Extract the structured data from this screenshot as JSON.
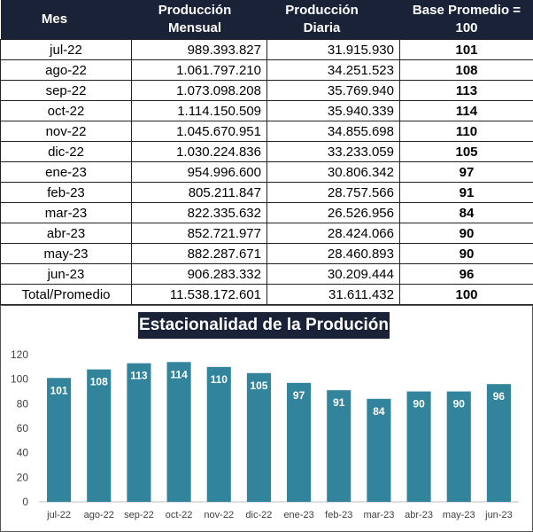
{
  "table": {
    "headers": {
      "mes": "Mes",
      "mensual": "Producción Mensual",
      "diaria": "Producción Diaria",
      "base": "Base Promedio = 100"
    },
    "rows": [
      {
        "mes": "jul-22",
        "mensual": "989.393.827",
        "diaria": "31.915.930",
        "base": "101"
      },
      {
        "mes": "ago-22",
        "mensual": "1.061.797.210",
        "diaria": "34.251.523",
        "base": "108"
      },
      {
        "mes": "sep-22",
        "mensual": "1.073.098.208",
        "diaria": "35.769.940",
        "base": "113"
      },
      {
        "mes": "oct-22",
        "mensual": "1.114.150.509",
        "diaria": "35.940.339",
        "base": "114"
      },
      {
        "mes": "nov-22",
        "mensual": "1.045.670.951",
        "diaria": "34.855.698",
        "base": "110"
      },
      {
        "mes": "dic-22",
        "mensual": "1.030.224.836",
        "diaria": "33.233.059",
        "base": "105"
      },
      {
        "mes": "ene-23",
        "mensual": "954.996.600",
        "diaria": "30.806.342",
        "base": "97"
      },
      {
        "mes": "feb-23",
        "mensual": "805.211.847",
        "diaria": "28.757.566",
        "base": "91"
      },
      {
        "mes": "mar-23",
        "mensual": "822.335.632",
        "diaria": "26.526.956",
        "base": "84"
      },
      {
        "mes": "abr-23",
        "mensual": "852.721.977",
        "diaria": "28.424.066",
        "base": "90"
      },
      {
        "mes": "may-23",
        "mensual": "882.287.671",
        "diaria": "28.460.893",
        "base": "90"
      },
      {
        "mes": "jun-23",
        "mensual": "906.283.332",
        "diaria": "30.209.444",
        "base": "96"
      }
    ],
    "total": {
      "mes": "Total/Promedio",
      "mensual": "11.538.172.601",
      "diaria": "31.611.432",
      "base": "100"
    }
  },
  "chart_data": {
    "type": "bar",
    "title": "Estacionalidad de la Produción",
    "categories": [
      "jul-22",
      "ago-22",
      "sep-22",
      "oct-22",
      "nov-22",
      "dic-22",
      "ene-23",
      "feb-23",
      "mar-23",
      "abr-23",
      "may-23",
      "jun-23"
    ],
    "values": [
      101,
      108,
      113,
      114,
      110,
      105,
      97,
      91,
      84,
      90,
      90,
      96
    ],
    "ylim": [
      0,
      120
    ],
    "yticks": [
      0,
      20,
      40,
      60,
      80,
      100,
      120
    ],
    "xlabel": "",
    "ylabel": "",
    "grid": false,
    "legend": "none",
    "bar_color": "#31849b",
    "label_color": "#ffffff"
  }
}
